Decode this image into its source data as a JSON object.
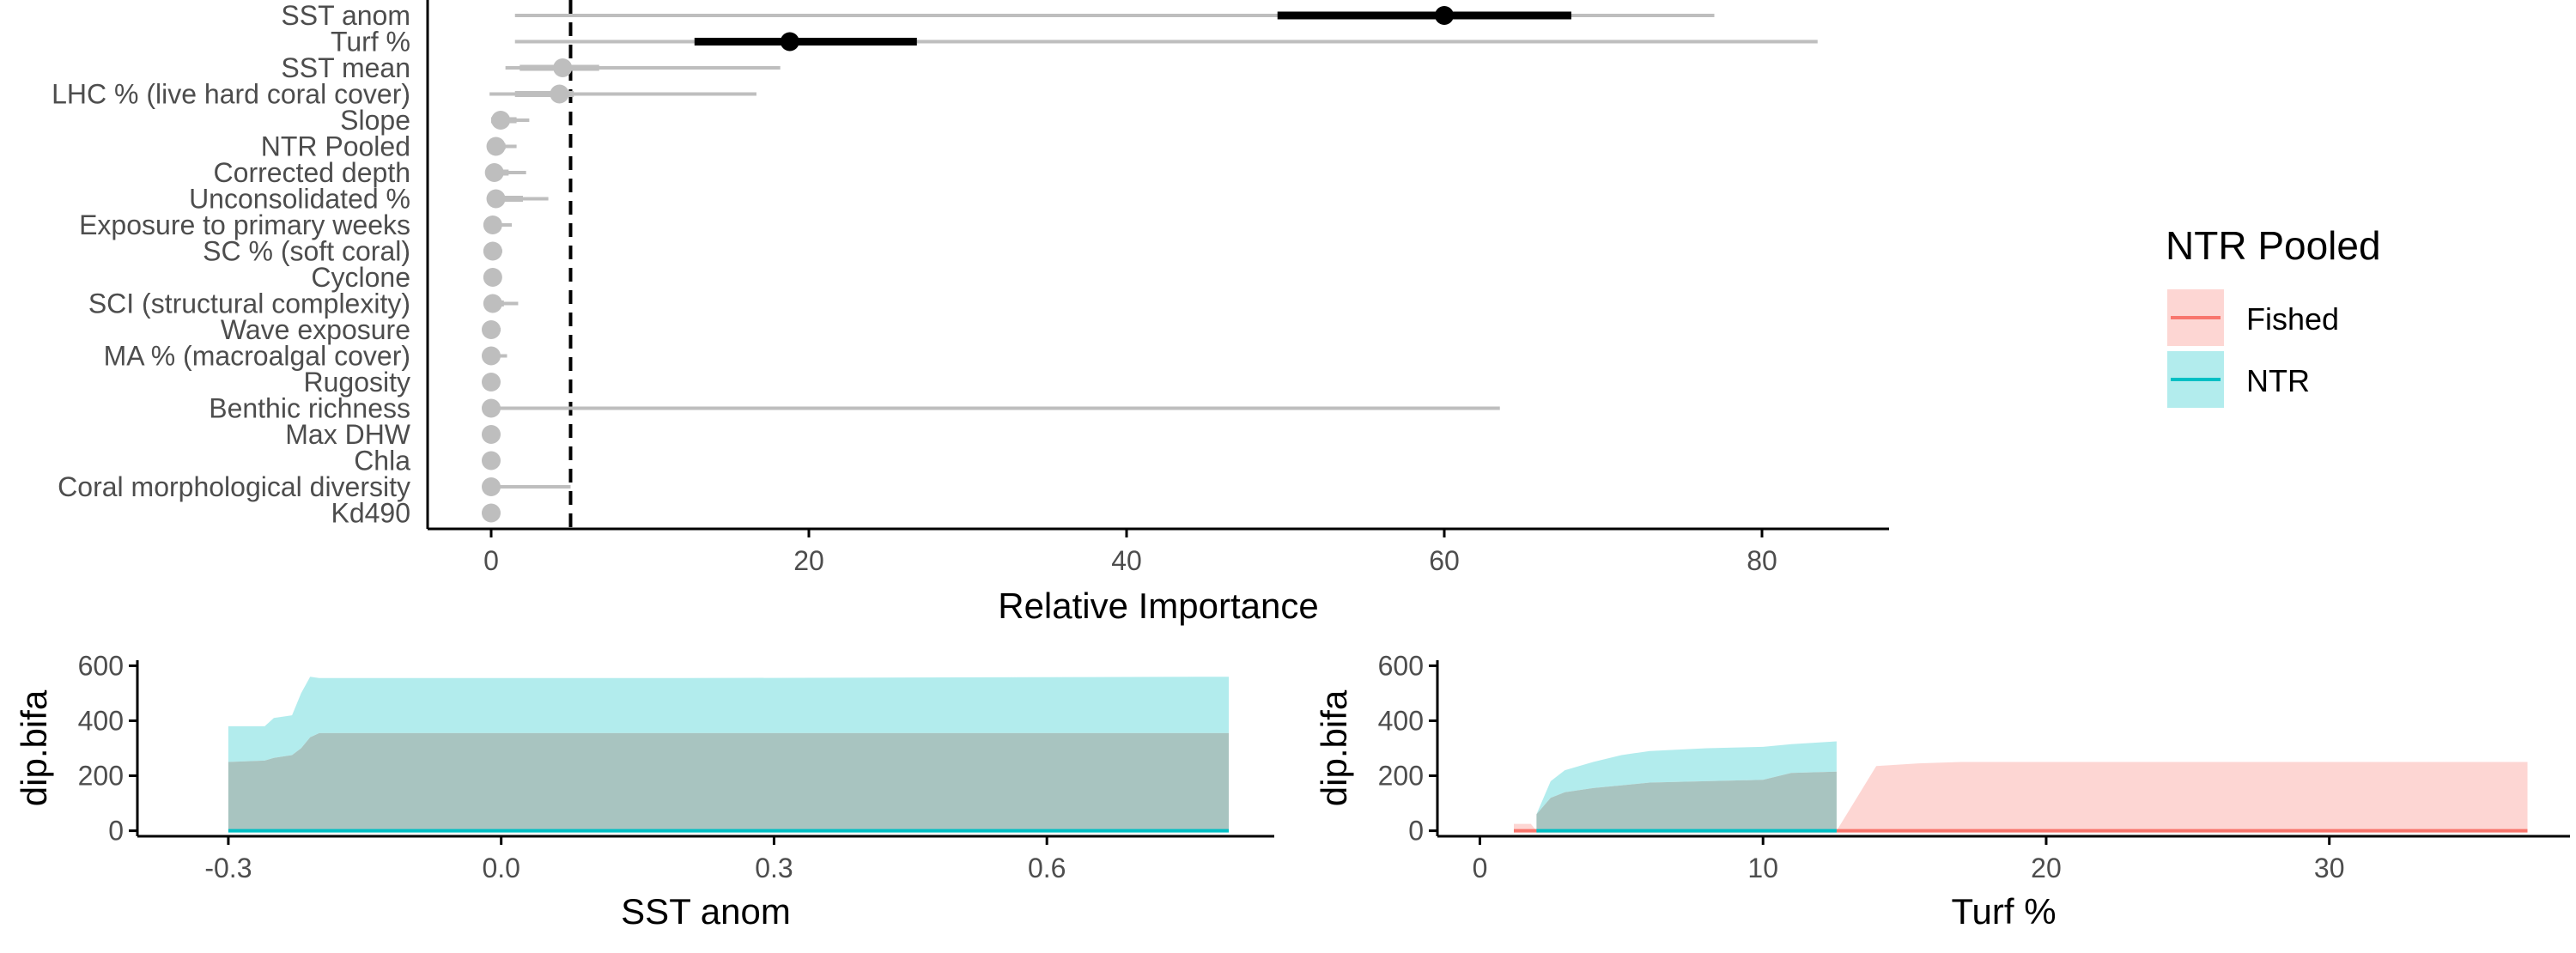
{
  "colors": {
    "fished": "#F8766D",
    "ntr": "#00BFC4",
    "grey": "#BEBEBE",
    "black": "#000000",
    "label": "#4D4D4D"
  },
  "legend": {
    "title": "NTR Pooled",
    "items": [
      {
        "label": "Fished",
        "color": "#F8766D"
      },
      {
        "label": "NTR",
        "color": "#00BFC4"
      }
    ],
    "placement": "right"
  },
  "chart_data": [
    {
      "type": "dot-interval",
      "xlabel": "Relative Importance",
      "xlim": [
        -4,
        88
      ],
      "xticks": [
        0,
        20,
        40,
        60,
        80
      ],
      "reference_line": 5,
      "rows": [
        {
          "label": "SST anom",
          "value": 60,
          "inner": [
            49.5,
            68
          ],
          "outer": [
            1.5,
            77
          ],
          "highlight": true
        },
        {
          "label": "Turf %",
          "value": 18.8,
          "inner": [
            12.8,
            26.8
          ],
          "outer": [
            1.5,
            83.5
          ],
          "highlight": true
        },
        {
          "label": "SST mean",
          "value": 4.5,
          "inner": [
            1.8,
            6.8
          ],
          "outer": [
            0.9,
            18.2
          ],
          "highlight": false
        },
        {
          "label": "LHC % (live hard coral cover)",
          "value": 4.3,
          "inner": [
            1.5,
            5.2
          ],
          "outer": [
            -0.1,
            16.7
          ],
          "highlight": false
        },
        {
          "label": "Slope",
          "value": 0.6,
          "inner": [
            0,
            1.6
          ],
          "outer": [
            0,
            2.4
          ],
          "highlight": false
        },
        {
          "label": "NTR Pooled",
          "value": 0.3,
          "inner": [
            0,
            0.9
          ],
          "outer": [
            0,
            1.6
          ],
          "highlight": false
        },
        {
          "label": "Corrected depth",
          "value": 0.2,
          "inner": [
            0,
            1.1
          ],
          "outer": [
            0,
            2.2
          ],
          "highlight": false
        },
        {
          "label": "Unconsolidated %",
          "value": 0.3,
          "inner": [
            0,
            2
          ],
          "outer": [
            0,
            3.6
          ],
          "highlight": false
        },
        {
          "label": "Exposure to primary weeks",
          "value": 0.1,
          "inner": [
            0,
            0.6
          ],
          "outer": [
            0,
            1.3
          ],
          "highlight": false
        },
        {
          "label": "SC % (soft coral)",
          "value": 0.1,
          "inner": [
            0,
            0.3
          ],
          "outer": [
            0,
            0.7
          ],
          "highlight": false
        },
        {
          "label": "Cyclone",
          "value": 0.1,
          "inner": [
            0,
            0.2
          ],
          "outer": [
            0,
            0.5
          ],
          "highlight": false
        },
        {
          "label": "SCI (structural complexity)",
          "value": 0.1,
          "inner": [
            0,
            0.8
          ],
          "outer": [
            0,
            1.7
          ],
          "highlight": false
        },
        {
          "label": "Wave exposure",
          "value": 0,
          "inner": [
            0,
            0.2
          ],
          "outer": [
            0,
            0.6
          ],
          "highlight": false
        },
        {
          "label": "MA % (macroalgal cover)",
          "value": 0,
          "inner": [
            0,
            0.5
          ],
          "outer": [
            0,
            1
          ],
          "highlight": false
        },
        {
          "label": "Rugosity",
          "value": 0,
          "inner": [
            0,
            0.2
          ],
          "outer": [
            0,
            0.5
          ],
          "highlight": false
        },
        {
          "label": "Benthic richness",
          "value": 0,
          "inner": [
            0,
            0.4
          ],
          "outer": [
            0,
            63.5
          ],
          "highlight": false
        },
        {
          "label": "Max DHW",
          "value": 0,
          "inner": [
            0,
            0.1
          ],
          "outer": [
            0,
            0.3
          ],
          "highlight": false
        },
        {
          "label": "Chla",
          "value": 0,
          "inner": [
            0,
            0.1
          ],
          "outer": [
            0,
            0.3
          ],
          "highlight": false
        },
        {
          "label": "Coral morphological diversity",
          "value": 0,
          "inner": [
            0,
            0.5
          ],
          "outer": [
            0,
            5
          ],
          "highlight": false
        },
        {
          "label": "Kd490",
          "value": 0,
          "inner": [
            0,
            0.1
          ],
          "outer": [
            0,
            0.3
          ],
          "highlight": false
        }
      ]
    },
    {
      "type": "area",
      "xlabel": "SST anom",
      "ylabel": "dip.bifa",
      "xlim": [
        -0.4,
        0.85
      ],
      "ylim": [
        -20,
        620
      ],
      "xticks": [
        -0.3,
        0.0,
        0.3,
        0.6
      ],
      "xtick_labels": [
        "-0.3",
        "0.0",
        "0.3",
        "0.6"
      ],
      "yticks": [
        0,
        200,
        400,
        600
      ],
      "series": [
        {
          "group": "NTR",
          "x": [
            -0.3,
            -0.26,
            -0.25,
            -0.23,
            -0.22,
            -0.21,
            -0.2,
            0.2,
            0.8
          ],
          "upper": [
            380,
            380,
            410,
            420,
            500,
            560,
            555,
            555,
            560
          ],
          "lower": [
            250,
            255,
            265,
            275,
            300,
            340,
            355,
            355,
            355
          ],
          "mean": [
            0,
            0,
            0,
            0,
            0,
            0,
            0,
            0,
            0
          ]
        }
      ]
    },
    {
      "type": "area",
      "xlabel": "Turf %",
      "ylabel": "dip.bifa",
      "xlim": [
        -1.5,
        38.5
      ],
      "ylim": [
        -20,
        620
      ],
      "xticks": [
        0,
        10,
        20,
        30
      ],
      "xtick_labels": [
        "0",
        "10",
        "20",
        "30"
      ],
      "yticks": [
        0,
        200,
        400,
        600
      ],
      "series": [
        {
          "group": "Fished",
          "x": [
            1.2,
            1.8,
            2.0,
            12.6,
            14,
            15.5,
            17,
            20,
            37
          ],
          "upper": [
            25,
            25,
            0,
            0,
            235,
            245,
            250,
            250,
            250
          ],
          "lower": [
            0,
            0,
            0,
            0,
            0,
            0,
            0,
            0,
            0
          ],
          "mean": [
            0,
            0,
            0,
            0,
            0,
            0,
            0,
            0,
            0
          ]
        },
        {
          "group": "NTR",
          "x": [
            2.0,
            2.5,
            3,
            4,
            5,
            6,
            8,
            10,
            11,
            12.6
          ],
          "upper": [
            60,
            180,
            220,
            250,
            275,
            290,
            300,
            305,
            315,
            325
          ],
          "lower": [
            60,
            120,
            140,
            155,
            165,
            175,
            180,
            185,
            210,
            215
          ],
          "mean": [
            0,
            0,
            0,
            0,
            0,
            0,
            0,
            0,
            0,
            0
          ]
        }
      ]
    }
  ]
}
